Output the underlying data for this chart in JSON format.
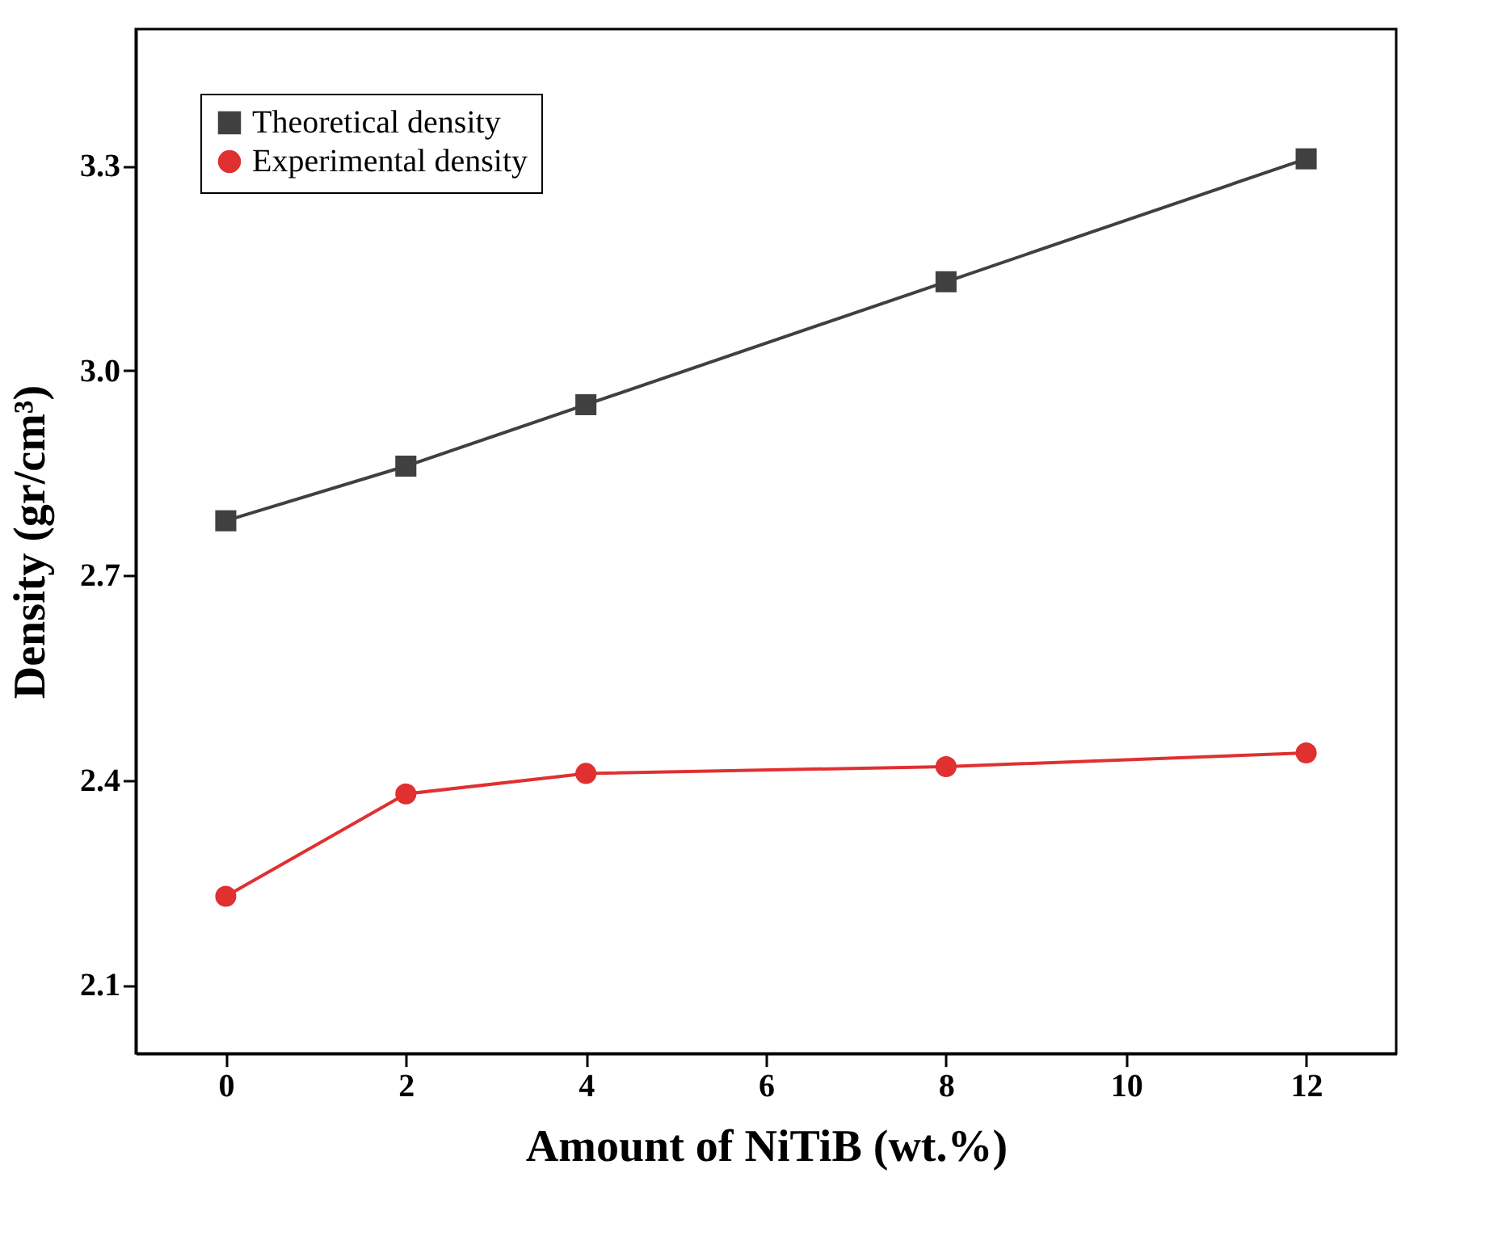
{
  "chart_data": {
    "type": "line",
    "xlabel": "Amount of NiTiB (wt.%)",
    "ylabel": "Density (gr/cm³)",
    "x": [
      0,
      2,
      4,
      8,
      12
    ],
    "xlim": [
      -1,
      13
    ],
    "xticks": [
      0,
      2,
      4,
      6,
      8,
      10,
      12
    ],
    "ylim": [
      2.0,
      3.5
    ],
    "yticks": [
      2.1,
      2.4,
      2.7,
      {
        "value": 3,
        "label": "3.0"
      },
      3.3
    ],
    "grid": false,
    "legend": "top left",
    "line_style": "solid",
    "series": [
      {
        "name": "Theoretical density",
        "color": "#404040",
        "marker": "square",
        "values": [
          2.78,
          2.86,
          2.95,
          3.13,
          3.31
        ]
      },
      {
        "name": "Experimental density",
        "color": "#e03030",
        "marker": "circle",
        "values": [
          2.23,
          2.38,
          2.41,
          2.42,
          2.44
        ]
      }
    ]
  }
}
